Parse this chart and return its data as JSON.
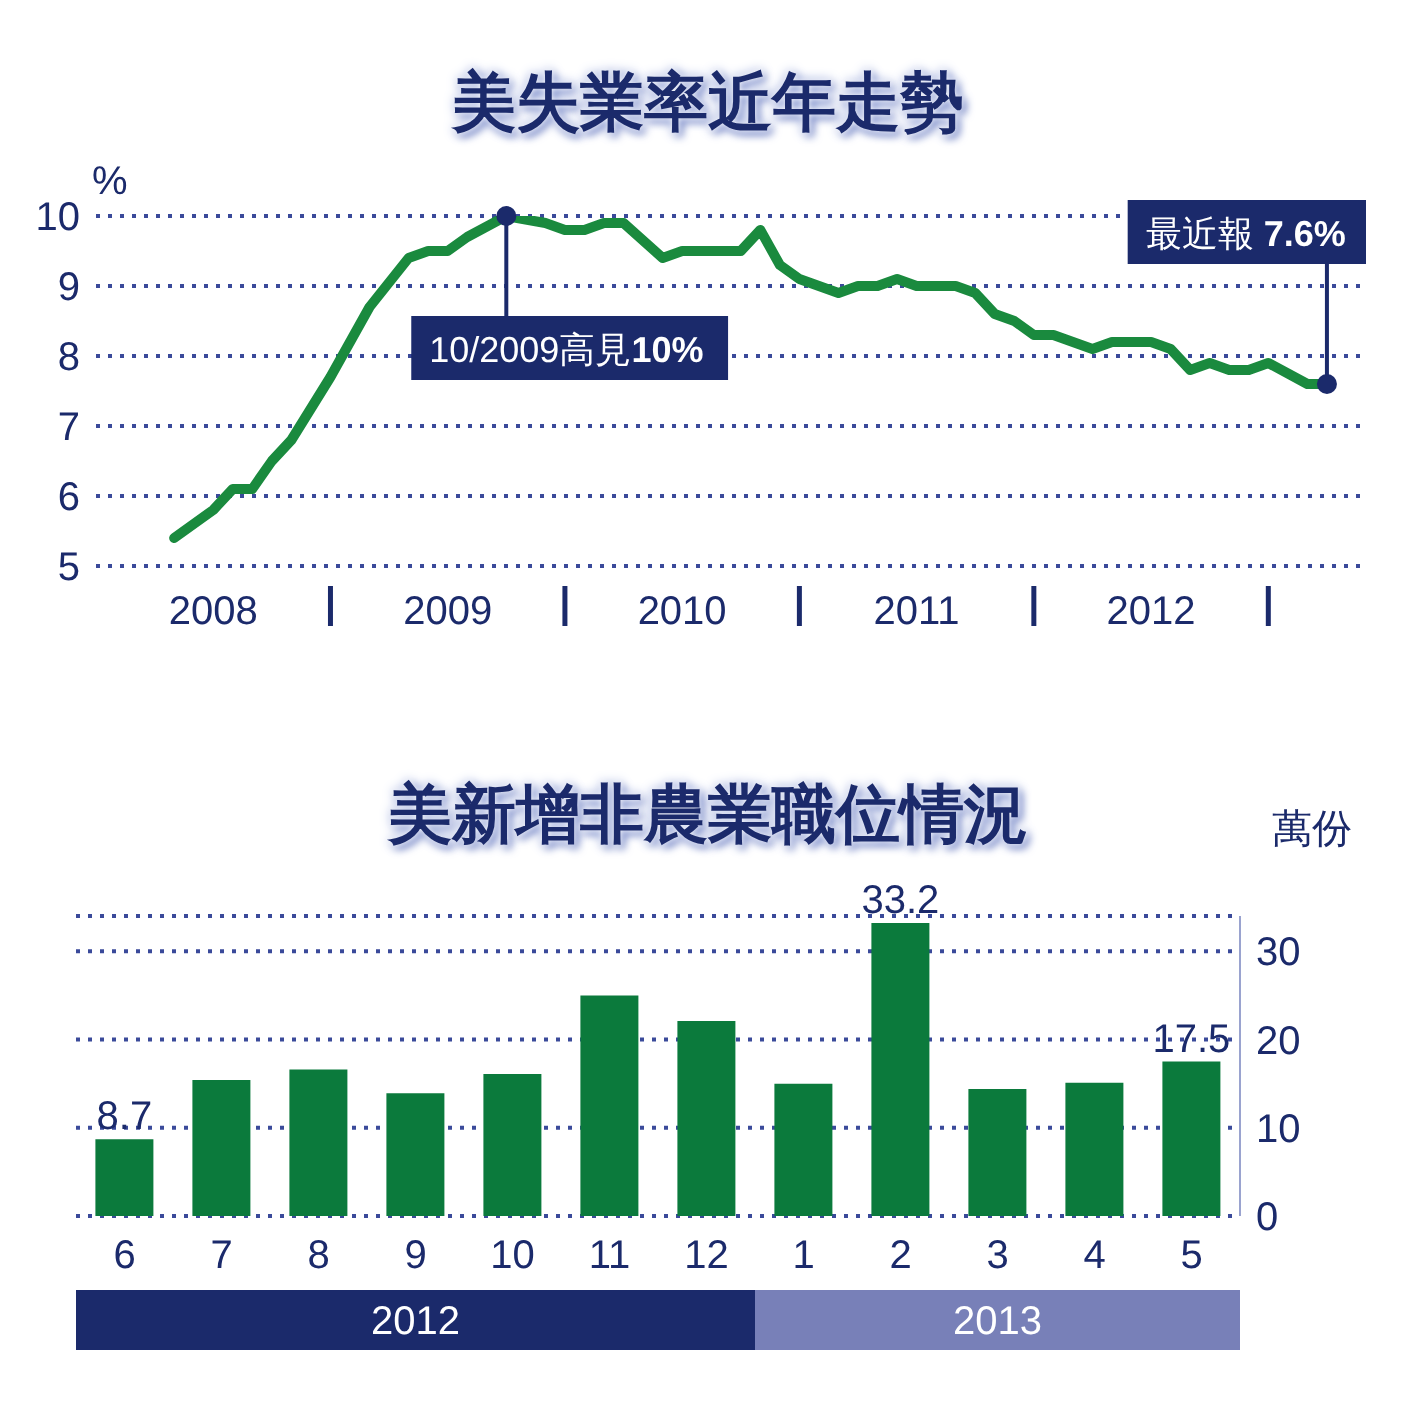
{
  "chart_data": [
    {
      "type": "line",
      "title": "美失業率近年走勢",
      "ylabel": "%",
      "color": "#1a8a3e",
      "x": [
        "2008-05",
        "2008-07",
        "2008-08",
        "2008-09",
        "2008-10",
        "2008-11",
        "2009-01",
        "2009-03",
        "2009-05",
        "2009-06",
        "2009-07",
        "2009-08",
        "2009-10",
        "2009-12",
        "2010-01",
        "2010-02",
        "2010-03",
        "2010-04",
        "2010-06",
        "2010-07",
        "2010-10",
        "2010-11",
        "2010-12",
        "2011-01",
        "2011-03",
        "2011-04",
        "2011-05",
        "2011-06",
        "2011-07",
        "2011-09",
        "2011-10",
        "2011-11",
        "2011-12",
        "2012-01",
        "2012-02",
        "2012-04",
        "2012-05",
        "2012-07",
        "2012-08",
        "2012-09",
        "2012-10",
        "2012-11",
        "2012-12",
        "2013-01",
        "2013-03",
        "2013-04"
      ],
      "values": [
        5.4,
        5.8,
        6.1,
        6.1,
        6.5,
        6.8,
        7.7,
        8.7,
        9.4,
        9.5,
        9.5,
        9.7,
        10,
        9.9,
        9.8,
        9.8,
        9.9,
        9.9,
        9.4,
        9.5,
        9.5,
        9.8,
        9.3,
        9.1,
        8.9,
        9,
        9,
        9.1,
        9,
        9,
        8.9,
        8.6,
        8.5,
        8.3,
        8.3,
        8.1,
        8.2,
        8.2,
        8.1,
        7.8,
        7.9,
        7.8,
        7.8,
        7.9,
        7.6,
        7.6
      ],
      "xlim": [
        "2008-01",
        "2013-06"
      ],
      "xticks": [
        {
          "value": "2008-07",
          "label": "2008"
        },
        {
          "value": "2009-07",
          "label": "2009"
        },
        {
          "value": "2010-07",
          "label": "2010"
        },
        {
          "value": "2011-07",
          "label": "2011"
        },
        {
          "value": "2012-07",
          "label": "2012"
        }
      ],
      "ylim": [
        5,
        10
      ],
      "yticks": [
        5,
        6,
        7,
        8,
        9,
        10
      ],
      "grid": "y",
      "annotations": [
        {
          "text": "10/2009高見10%",
          "x": "2009-10",
          "y": 10
        },
        {
          "text": "最近報 7.6%",
          "x": "2013-04",
          "y": 7.6
        }
      ]
    },
    {
      "type": "bar",
      "title": "美新增非農業職位情況",
      "ylabel": "萬份",
      "color": "#0b7a3c",
      "categories": [
        "6",
        "7",
        "8",
        "9",
        "10",
        "11",
        "12",
        "1",
        "2",
        "3",
        "4",
        "5"
      ],
      "values": [
        8.7,
        15.4,
        16.6,
        13.9,
        16.1,
        25,
        22.1,
        15,
        33.2,
        14.4,
        15.1,
        17.5
      ],
      "value_labels": [
        "8.7",
        null,
        null,
        null,
        null,
        null,
        null,
        null,
        "33.2",
        null,
        null,
        "17.5"
      ],
      "ylim": [
        0,
        34
      ],
      "yticks": [
        0,
        10,
        20,
        30
      ],
      "grid": "y",
      "annotations": [
        "2012",
        "2013"
      ]
    }
  ]
}
